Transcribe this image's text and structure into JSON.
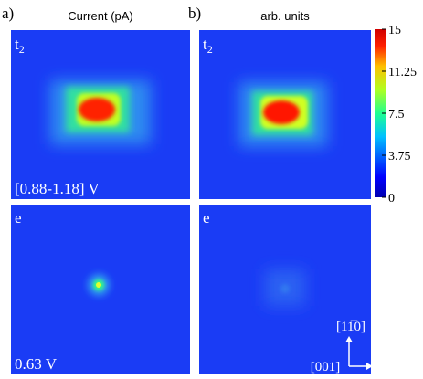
{
  "panels": [
    {
      "label": "a)",
      "title": "Current (pA)"
    },
    {
      "label": "b)",
      "title": "arb. units"
    }
  ],
  "images": [
    {
      "state": "t",
      "subscript": "2",
      "note": "[0.88-1.18] V"
    },
    {
      "state": "t",
      "subscript": "2"
    },
    {
      "state": "e",
      "note": "0.63 V"
    },
    {
      "state": "e"
    }
  ],
  "colorbar": {
    "range": [
      0,
      15
    ],
    "ticks": [
      0,
      3.75,
      7.5,
      11.25,
      15
    ]
  },
  "directions": {
    "vertical": "[11̅0]",
    "horizontal": "[001]"
  }
}
